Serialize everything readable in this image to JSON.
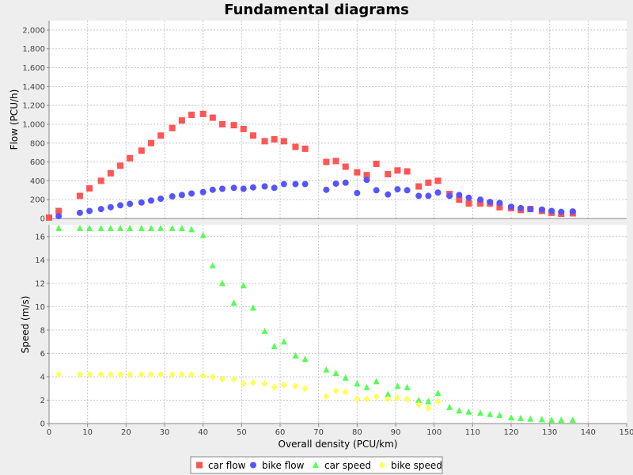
{
  "chart_data": {
    "type": "scatter",
    "title": "Fundamental diagrams",
    "xlabel": "Overall density (PCU/km)",
    "xlim": [
      0,
      150
    ],
    "xticks": [
      "0",
      "10",
      "20",
      "30",
      "40",
      "50",
      "60",
      "70",
      "80",
      "90",
      "100",
      "110",
      "120",
      "130",
      "140",
      "150"
    ],
    "legend_position": "bottom",
    "grid": true,
    "colors": {
      "car_flow": "#ff5555",
      "bike_flow": "#5555ff",
      "car_speed": "#55ff55",
      "bike_speed": "#ffff55",
      "plot_bg": "#ffffff",
      "page_bg": "#eeeeee"
    },
    "panels": [
      {
        "ylabel": "Flow (PCU/h)",
        "ylim": [
          0,
          2100
        ],
        "yticks": [
          "0",
          "200",
          "400",
          "600",
          "800",
          "1,000",
          "1,200",
          "1,400",
          "1,600",
          "1,800",
          "2,000"
        ],
        "series": [
          {
            "name": "car flow",
            "marker": "square",
            "points": [
              [
                0,
                10
              ],
              [
                2.5,
                80
              ],
              [
                8,
                240
              ],
              [
                10.5,
                320
              ],
              [
                13.5,
                400
              ],
              [
                16,
                480
              ],
              [
                18.5,
                560
              ],
              [
                21,
                640
              ],
              [
                24,
                720
              ],
              [
                26.5,
                800
              ],
              [
                29,
                880
              ],
              [
                32,
                960
              ],
              [
                34.5,
                1040
              ],
              [
                37,
                1100
              ],
              [
                40,
                1110
              ],
              [
                42.5,
                1070
              ],
              [
                45,
                1000
              ],
              [
                48,
                990
              ],
              [
                50.5,
                950
              ],
              [
                53,
                880
              ],
              [
                56,
                820
              ],
              [
                58.5,
                840
              ],
              [
                61,
                820
              ],
              [
                64,
                760
              ],
              [
                66.5,
                740
              ],
              [
                72,
                600
              ],
              [
                74.5,
                610
              ],
              [
                77,
                550
              ],
              [
                80,
                490
              ],
              [
                82.5,
                460
              ],
              [
                85,
                580
              ],
              [
                88,
                470
              ],
              [
                90.5,
                510
              ],
              [
                93,
                500
              ],
              [
                96,
                340
              ],
              [
                98.5,
                380
              ],
              [
                101,
                400
              ],
              [
                104,
                260
              ],
              [
                106.5,
                200
              ],
              [
                109,
                160
              ],
              [
                112,
                160
              ],
              [
                114.5,
                160
              ],
              [
                117,
                120
              ],
              [
                120,
                110
              ],
              [
                122.5,
                90
              ],
              [
                125,
                100
              ],
              [
                128,
                80
              ],
              [
                130.5,
                60
              ],
              [
                133,
                50
              ],
              [
                136,
                55
              ]
            ]
          },
          {
            "name": "bike flow",
            "marker": "circle",
            "points": [
              [
                2.5,
                25
              ],
              [
                8,
                60
              ],
              [
                10.5,
                80
              ],
              [
                13.5,
                100
              ],
              [
                16,
                120
              ],
              [
                18.5,
                140
              ],
              [
                21,
                155
              ],
              [
                24,
                170
              ],
              [
                26.5,
                190
              ],
              [
                29,
                210
              ],
              [
                32,
                235
              ],
              [
                34.5,
                250
              ],
              [
                37,
                265
              ],
              [
                40,
                280
              ],
              [
                42.5,
                305
              ],
              [
                45,
                315
              ],
              [
                48,
                325
              ],
              [
                50.5,
                315
              ],
              [
                53,
                330
              ],
              [
                56,
                340
              ],
              [
                58.5,
                325
              ],
              [
                61,
                365
              ],
              [
                64,
                365
              ],
              [
                66.5,
                365
              ],
              [
                72,
                305
              ],
              [
                74.5,
                370
              ],
              [
                77,
                380
              ],
              [
                80,
                270
              ],
              [
                82.5,
                410
              ],
              [
                85,
                300
              ],
              [
                88,
                255
              ],
              [
                90.5,
                310
              ],
              [
                93,
                300
              ],
              [
                96,
                240
              ],
              [
                98.5,
                240
              ],
              [
                101,
                275
              ],
              [
                104,
                240
              ],
              [
                106.5,
                250
              ],
              [
                109,
                220
              ],
              [
                112,
                200
              ],
              [
                114.5,
                175
              ],
              [
                117,
                165
              ],
              [
                120,
                125
              ],
              [
                122.5,
                110
              ],
              [
                125,
                100
              ],
              [
                128,
                95
              ],
              [
                130.5,
                80
              ],
              [
                133,
                70
              ],
              [
                136,
                75
              ]
            ]
          }
        ]
      },
      {
        "ylabel": "Speed (m/s)",
        "ylim": [
          0,
          17
        ],
        "yticks": [
          "0",
          "2",
          "4",
          "6",
          "8",
          "10",
          "12",
          "14",
          "16"
        ],
        "series": [
          {
            "name": "car speed",
            "marker": "triangle",
            "points": [
              [
                2.5,
                16.7
              ],
              [
                8,
                16.7
              ],
              [
                10.5,
                16.7
              ],
              [
                13.5,
                16.7
              ],
              [
                16,
                16.7
              ],
              [
                18.5,
                16.7
              ],
              [
                21,
                16.7
              ],
              [
                24,
                16.7
              ],
              [
                26.5,
                16.7
              ],
              [
                29,
                16.7
              ],
              [
                32,
                16.7
              ],
              [
                34.5,
                16.7
              ],
              [
                37,
                16.6
              ],
              [
                40,
                16.1
              ],
              [
                42.5,
                13.5
              ],
              [
                45,
                12.0
              ],
              [
                48,
                10.3
              ],
              [
                50.5,
                11.8
              ],
              [
                53,
                9.9
              ],
              [
                56,
                7.9
              ],
              [
                58.5,
                6.6
              ],
              [
                61,
                7.0
              ],
              [
                64,
                5.8
              ],
              [
                66.5,
                5.5
              ],
              [
                72,
                4.6
              ],
              [
                74.5,
                4.3
              ],
              [
                77,
                3.9
              ],
              [
                80,
                3.4
              ],
              [
                82.5,
                3.1
              ],
              [
                85,
                3.6
              ],
              [
                88,
                2.5
              ],
              [
                90.5,
                3.2
              ],
              [
                93,
                3.1
              ],
              [
                96,
                2.0
              ],
              [
                98.5,
                1.9
              ],
              [
                101,
                2.6
              ],
              [
                104,
                1.4
              ],
              [
                106.5,
                1.1
              ],
              [
                109,
                1.0
              ],
              [
                112,
                0.9
              ],
              [
                114.5,
                0.8
              ],
              [
                117,
                0.7
              ],
              [
                120,
                0.5
              ],
              [
                122.5,
                0.45
              ],
              [
                125,
                0.4
              ],
              [
                128,
                0.35
              ],
              [
                130.5,
                0.3
              ],
              [
                133,
                0.3
              ],
              [
                136,
                0.3
              ]
            ]
          },
          {
            "name": "bike speed",
            "marker": "diamond",
            "points": [
              [
                2.5,
                4.2
              ],
              [
                8,
                4.2
              ],
              [
                10.5,
                4.2
              ],
              [
                13.5,
                4.2
              ],
              [
                16,
                4.2
              ],
              [
                18.5,
                4.2
              ],
              [
                21,
                4.2
              ],
              [
                24,
                4.2
              ],
              [
                26.5,
                4.2
              ],
              [
                29,
                4.2
              ],
              [
                32,
                4.2
              ],
              [
                34.5,
                4.2
              ],
              [
                37,
                4.2
              ],
              [
                40,
                4.1
              ],
              [
                42.5,
                4.0
              ],
              [
                45,
                3.8
              ],
              [
                48,
                3.8
              ],
              [
                50.5,
                3.4
              ],
              [
                53,
                3.5
              ],
              [
                56,
                3.4
              ],
              [
                58.5,
                3.1
              ],
              [
                61,
                3.3
              ],
              [
                64,
                3.2
              ],
              [
                66.5,
                3.0
              ],
              [
                72,
                2.3
              ],
              [
                74.5,
                2.8
              ],
              [
                77,
                2.7
              ],
              [
                80,
                2.1
              ],
              [
                82.5,
                2.1
              ],
              [
                85,
                2.3
              ],
              [
                88,
                2.1
              ],
              [
                90.5,
                2.2
              ],
              [
                93,
                2.1
              ],
              [
                96,
                1.6
              ],
              [
                98.5,
                1.3
              ],
              [
                101,
                1.9
              ]
            ]
          }
        ]
      }
    ]
  }
}
